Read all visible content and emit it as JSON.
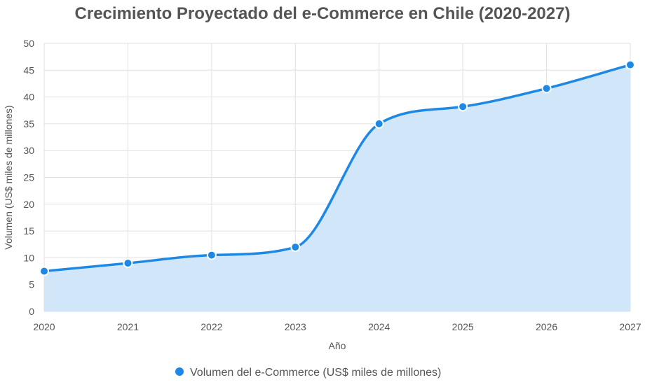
{
  "chart_data": {
    "type": "area",
    "title": "Crecimiento Proyectado del e-Commerce en Chile (2020-2027)",
    "xlabel": "Año",
    "ylabel": "Volumen (US$ miles de millones)",
    "categories": [
      "2020",
      "2021",
      "2022",
      "2023",
      "2024",
      "2025",
      "2026",
      "2027"
    ],
    "series": [
      {
        "name": "Volumen del e-Commerce (US$ miles de millones)",
        "values": [
          7.5,
          9.0,
          10.5,
          12.0,
          35.0,
          38.2,
          41.6,
          46.0
        ],
        "color": "#1e88e5",
        "fill": "#d2e6fa"
      }
    ],
    "ylim": [
      0,
      50
    ],
    "yticks": [
      0,
      5,
      10,
      15,
      20,
      25,
      30,
      35,
      40,
      45,
      50
    ],
    "grid": true,
    "legend": "bottom",
    "smooth": true
  }
}
